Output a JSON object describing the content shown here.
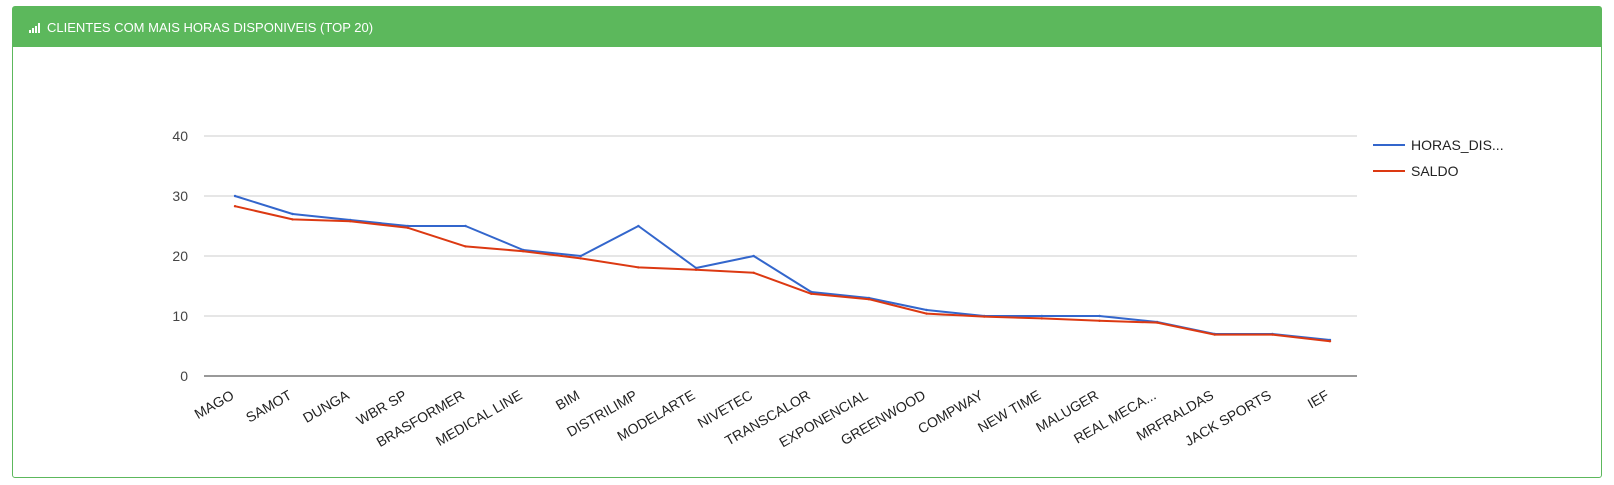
{
  "panel": {
    "title": "CLIENTES COM MAIS HORAS DISPONIVEIS (TOP 20)",
    "header_color": "#5cb85c",
    "icon": "signal-bars-icon"
  },
  "chart_data": {
    "type": "line",
    "categories": [
      "MAGO",
      "SAMOT",
      "DUNGA",
      "WBR SP",
      "BRASFORMER",
      "MEDICAL LINE",
      "BIM",
      "DISTRILIMP",
      "MODELARTE",
      "NIVETEC",
      "TRANSCALOR",
      "EXPONENCIAL",
      "GREENWOOD",
      "COMPWAY",
      "NEW TIME",
      "MALUGER",
      "REAL MECA...",
      "MRFRALDAS",
      "JACK SPORTS",
      "IEF"
    ],
    "series": [
      {
        "name": "HORAS_DIS...",
        "color": "#3366cc",
        "values": [
          30,
          27,
          26,
          25,
          25,
          21,
          20,
          25,
          18,
          20,
          14,
          13,
          11,
          10,
          10,
          10,
          9,
          7,
          7,
          6
        ]
      },
      {
        "name": "SALDO",
        "color": "#dc3912",
        "values": [
          28.3,
          26.1,
          25.8,
          24.7,
          21.6,
          20.8,
          19.6,
          18.1,
          17.7,
          17.2,
          13.7,
          12.8,
          10.4,
          9.9,
          9.6,
          9.2,
          8.9,
          6.9,
          6.9,
          5.8
        ]
      }
    ],
    "yticks": [
      0,
      10,
      20,
      30,
      40
    ],
    "ylim": [
      0,
      40
    ],
    "grid": true,
    "legend_position": "right"
  }
}
